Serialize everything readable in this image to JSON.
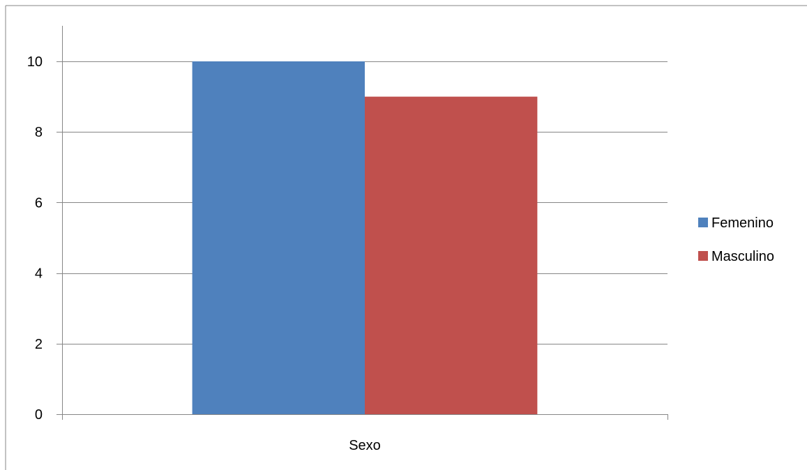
{
  "chart_data": {
    "type": "bar",
    "categories": [
      "Sexo"
    ],
    "series": [
      {
        "name": "Femenino",
        "values": [
          10
        ],
        "color": "#4F81BD"
      },
      {
        "name": "Masculino",
        "values": [
          9
        ],
        "color": "#C0504D"
      }
    ],
    "title": "",
    "xlabel": "",
    "ylabel": "",
    "ylim": [
      0,
      10
    ],
    "yticks": [
      0,
      2,
      4,
      6,
      8,
      10
    ],
    "ytick_labels": [
      "0",
      "2",
      "4",
      "6",
      "8",
      "10"
    ],
    "grid": true,
    "legend_position": "right"
  },
  "colors": {
    "background": "#FFFFFF",
    "gridline": "#868686",
    "axis": "#868686",
    "border": "#868686"
  }
}
